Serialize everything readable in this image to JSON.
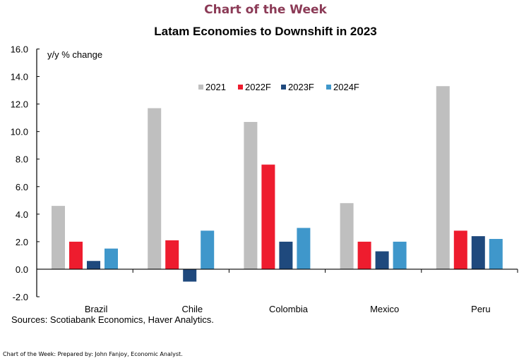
{
  "header": {
    "kicker": "Chart of the Week",
    "title": "Latam Economies to Downshift in 2023"
  },
  "chart_data": {
    "type": "bar",
    "title": "Latam Economies to Downshift in 2023",
    "ylabel": "y/y % change",
    "xlabel": "",
    "ylim": [
      -2,
      16
    ],
    "ytick_step": 2,
    "yticks": [
      "-2.0",
      "0.0",
      "2.0",
      "4.0",
      "6.0",
      "8.0",
      "10.0",
      "12.0",
      "14.0",
      "16.0"
    ],
    "grid": false,
    "legend_position": "top-center",
    "categories": [
      "Brazil",
      "Chile",
      "Colombia",
      "Mexico",
      "Peru"
    ],
    "series": [
      {
        "name": "2021",
        "color": "#BFBFBF",
        "values": [
          4.6,
          11.7,
          10.7,
          4.8,
          13.3
        ]
      },
      {
        "name": "2022F",
        "color": "#EE1C2E",
        "values": [
          2.0,
          2.1,
          7.6,
          2.0,
          2.8
        ]
      },
      {
        "name": "2023F",
        "color": "#1F497D",
        "values": [
          0.6,
          -0.9,
          2.0,
          1.3,
          2.4
        ]
      },
      {
        "name": "2024F",
        "color": "#3F97CB",
        "values": [
          1.5,
          2.8,
          3.0,
          2.0,
          2.2
        ]
      }
    ]
  },
  "source": "Sources: Scotiabank Economics, Haver Analytics.",
  "footer": "Chart of the Week:  Prepared by: John Fanjoy, Economic Analyst."
}
